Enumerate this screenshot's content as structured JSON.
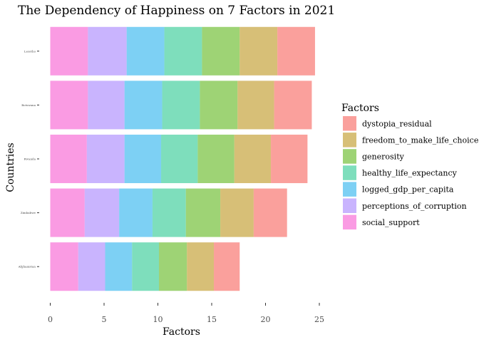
{
  "chart_data": {
    "type": "bar",
    "orientation": "horizontal",
    "stacked": true,
    "title": "The Dependency of Happiness on 7 Factors in 2021",
    "xlabel": "Factors",
    "ylabel": "Countries",
    "xlim": [
      0,
      25
    ],
    "xticks": [
      0,
      5,
      10,
      15,
      20,
      25
    ],
    "grid": false,
    "legend_title": "Factors",
    "legend_position": "right",
    "categories": [
      "Lesotho",
      "Botswana",
      "Rwanda",
      "Zimbabwe",
      "Afghanistan"
    ],
    "series": [
      {
        "name": "social_support",
        "color": "#F87AD9",
        "values": [
          3.5,
          3.5,
          3.4,
          3.2,
          2.6
        ]
      },
      {
        "name": "perceptions_of_corruption",
        "color": "#B79BFD",
        "values": [
          3.6,
          3.4,
          3.5,
          3.2,
          2.5
        ]
      },
      {
        "name": "logged_gdp_per_capita",
        "color": "#52C0F0",
        "values": [
          3.5,
          3.5,
          3.4,
          3.1,
          2.5
        ]
      },
      {
        "name": "healthy_life_expectancy",
        "color": "#53D3A6",
        "values": [
          3.5,
          3.5,
          3.4,
          3.1,
          2.5
        ]
      },
      {
        "name": "generosity",
        "color": "#7DC447",
        "values": [
          3.5,
          3.5,
          3.4,
          3.2,
          2.6
        ]
      },
      {
        "name": "freedom_to_make_life_choices",
        "color": "#CAAA4A",
        "values": [
          3.5,
          3.4,
          3.4,
          3.1,
          2.5
        ]
      },
      {
        "name": "dystopia_residual",
        "color": "#F8807B",
        "values": [
          3.5,
          3.5,
          3.4,
          3.1,
          2.4
        ]
      }
    ]
  }
}
